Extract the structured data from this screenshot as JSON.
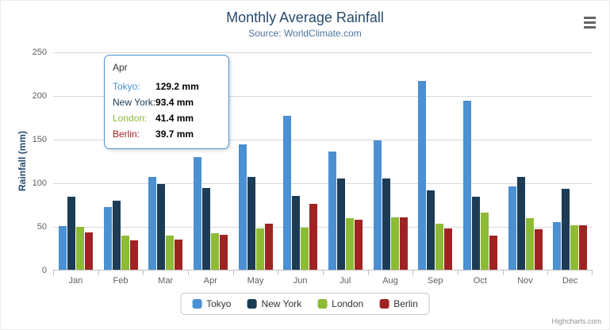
{
  "chart_data": {
    "type": "bar",
    "title": "Monthly Average Rainfall",
    "subtitle": "Source: WorldClimate.com",
    "ylabel": "Rainfall (mm)",
    "xlabel": "",
    "ylim": [
      0,
      250
    ],
    "yticks": [
      0,
      50,
      100,
      150,
      200,
      250
    ],
    "grid": true,
    "legend_position": "bottom",
    "categories": [
      "Jan",
      "Feb",
      "Mar",
      "Apr",
      "May",
      "Jun",
      "Jul",
      "Aug",
      "Sep",
      "Oct",
      "Nov",
      "Dec"
    ],
    "series": [
      {
        "name": "Tokyo",
        "color": "#4a90d2",
        "values": [
          49.9,
          71.5,
          106.4,
          129.2,
          144.0,
          176.0,
          135.6,
          148.5,
          216.4,
          194.1,
          95.6,
          54.4
        ]
      },
      {
        "name": "New York",
        "color": "#1c3c55",
        "values": [
          83.6,
          78.8,
          98.5,
          93.4,
          106.0,
          84.5,
          105.0,
          104.3,
          91.2,
          83.5,
          106.6,
          92.3
        ]
      },
      {
        "name": "London",
        "color": "#8dbb33",
        "values": [
          48.9,
          38.8,
          39.3,
          41.4,
          47.0,
          48.3,
          59.0,
          59.6,
          52.4,
          65.2,
          59.3,
          51.2
        ]
      },
      {
        "name": "Berlin",
        "color": "#a02323",
        "values": [
          42.4,
          33.2,
          34.5,
          39.7,
          52.6,
          75.5,
          57.4,
          60.4,
          47.6,
          39.1,
          46.8,
          51.1
        ]
      }
    ]
  },
  "tooltip": {
    "header": "Apr",
    "rows": [
      {
        "name": "Tokyo:",
        "value": "129.2 mm",
        "color": "#4a90d2"
      },
      {
        "name": "New York:",
        "value": "93.4 mm",
        "color": "#1c3c55"
      },
      {
        "name": "London:",
        "value": "41.4 mm",
        "color": "#8dbb33"
      },
      {
        "name": "Berlin:",
        "value": "39.7 mm",
        "color": "#a02323"
      }
    ]
  },
  "credits": "Highcharts.com"
}
